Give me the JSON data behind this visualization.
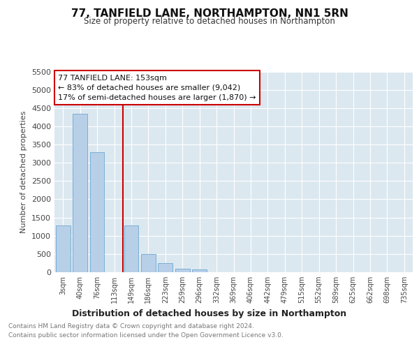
{
  "title": "77, TANFIELD LANE, NORTHAMPTON, NN1 5RN",
  "subtitle": "Size of property relative to detached houses in Northampton",
  "xlabel": "Distribution of detached houses by size in Northampton",
  "ylabel": "Number of detached properties",
  "categories": [
    "3sqm",
    "40sqm",
    "76sqm",
    "113sqm",
    "149sqm",
    "186sqm",
    "223sqm",
    "259sqm",
    "296sqm",
    "332sqm",
    "369sqm",
    "406sqm",
    "442sqm",
    "479sqm",
    "515sqm",
    "552sqm",
    "589sqm",
    "625sqm",
    "662sqm",
    "698sqm",
    "735sqm"
  ],
  "values": [
    1280,
    4350,
    3300,
    0,
    1280,
    490,
    240,
    100,
    70,
    0,
    0,
    0,
    0,
    0,
    0,
    0,
    0,
    0,
    0,
    0,
    0
  ],
  "bar_color": "#b8cfe8",
  "bar_edge_color": "#7aafd4",
  "vline_color": "#cc0000",
  "vline_index": 3.5,
  "ylim": [
    0,
    5500
  ],
  "yticks": [
    0,
    500,
    1000,
    1500,
    2000,
    2500,
    3000,
    3500,
    4000,
    4500,
    5000,
    5500
  ],
  "annotation_line1": "77 TANFIELD LANE: 153sqm",
  "annotation_line2": "← 83% of detached houses are smaller (9,042)",
  "annotation_line3": "17% of semi-detached houses are larger (1,870) →",
  "annotation_box_color": "#ffffff",
  "annotation_box_edge": "#cc0000",
  "footnote1": "Contains HM Land Registry data © Crown copyright and database right 2024.",
  "footnote2": "Contains public sector information licensed under the Open Government Licence v3.0.",
  "fig_bg_color": "#ffffff",
  "plot_bg_color": "#dce8f0"
}
